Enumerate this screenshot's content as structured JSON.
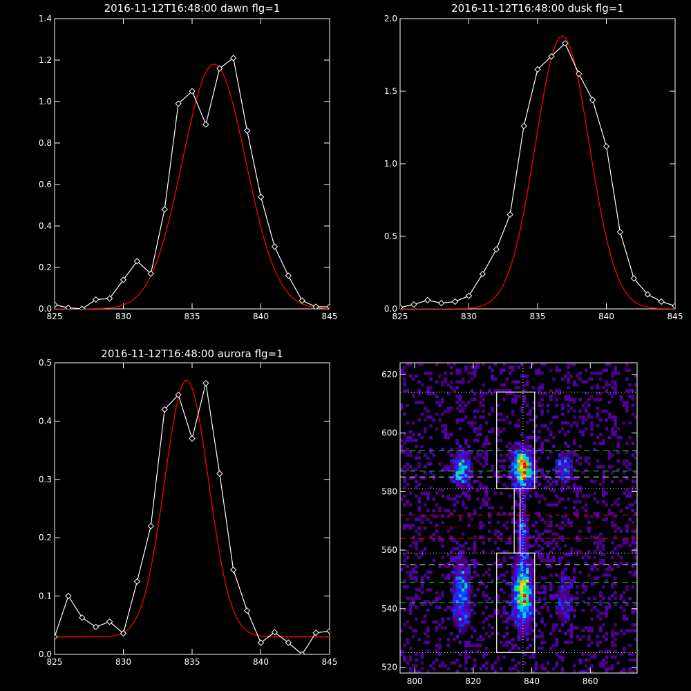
{
  "chart_data": [
    {
      "id": "dawn",
      "type": "line",
      "title": "2016-11-12T16:48:00 dawn flg=1",
      "xlim": [
        825,
        845
      ],
      "ylim": [
        0,
        1.4
      ],
      "xticks": [
        "825",
        "830",
        "835",
        "840",
        "845"
      ],
      "xtick_values": [
        825,
        830,
        835,
        840,
        845
      ],
      "yticks": [
        "0.0",
        "0.2",
        "0.4",
        "0.6",
        "0.8",
        "1.0",
        "1.2",
        "1.4"
      ],
      "ytick_values": [
        0,
        0.2,
        0.4,
        0.6,
        0.8,
        1.0,
        1.2,
        1.4
      ],
      "series": [
        {
          "role": "data",
          "color": "#ffffff",
          "marker": "diamond",
          "x": [
            825,
            826,
            827,
            828,
            829,
            830,
            831,
            832,
            833,
            834,
            835,
            836,
            837,
            838,
            839,
            840,
            841,
            842,
            843,
            844,
            845
          ],
          "y": [
            0.02,
            0.005,
            -0.02,
            0.045,
            0.05,
            0.14,
            0.23,
            0.17,
            0.48,
            0.99,
            1.05,
            0.89,
            1.16,
            1.21,
            0.86,
            0.54,
            0.3,
            0.16,
            0.04,
            0.01,
            0.01
          ]
        },
        {
          "role": "fit",
          "color": "#ff0000",
          "gauss": {
            "amp": 1.18,
            "center": 836.6,
            "sigma": 2.3,
            "offset": 0.0
          }
        }
      ]
    },
    {
      "id": "dusk",
      "type": "line",
      "title": "2016-11-12T16:48:00 dusk flg=1",
      "xlim": [
        825,
        845
      ],
      "ylim": [
        0,
        2.0
      ],
      "xticks": [
        "825",
        "830",
        "835",
        "840",
        "845"
      ],
      "xtick_values": [
        825,
        830,
        835,
        840,
        845
      ],
      "yticks": [
        "0.0",
        "0.5",
        "1.0",
        "1.5",
        "2.0"
      ],
      "ytick_values": [
        0,
        0.5,
        1.0,
        1.5,
        2.0
      ],
      "series": [
        {
          "role": "data",
          "color": "#ffffff",
          "marker": "diamond",
          "x": [
            825,
            826,
            827,
            828,
            829,
            830,
            831,
            832,
            833,
            834,
            835,
            836,
            837,
            838,
            839,
            840,
            841,
            842,
            843,
            844,
            845
          ],
          "y": [
            0.01,
            0.03,
            0.06,
            0.04,
            0.05,
            0.09,
            0.24,
            0.41,
            0.65,
            1.26,
            1.65,
            1.74,
            1.83,
            1.62,
            1.44,
            1.12,
            0.53,
            0.21,
            0.1,
            0.05,
            0.02
          ]
        },
        {
          "role": "fit",
          "color": "#ff0000",
          "gauss": {
            "amp": 1.88,
            "center": 836.8,
            "sigma": 1.95,
            "offset": 0.0
          }
        }
      ]
    },
    {
      "id": "aurora",
      "type": "line",
      "title": "2016-11-12T16:48:00 aurora flg=1",
      "xlim": [
        825,
        845
      ],
      "ylim": [
        0,
        0.5
      ],
      "xticks": [
        "825",
        "830",
        "835",
        "840",
        "845"
      ],
      "xtick_values": [
        825,
        830,
        835,
        840,
        845
      ],
      "yticks": [
        "0.0",
        "0.1",
        "0.2",
        "0.3",
        "0.4",
        "0.5"
      ],
      "ytick_values": [
        0,
        0.1,
        0.2,
        0.3,
        0.4,
        0.5
      ],
      "series": [
        {
          "role": "data",
          "color": "#ffffff",
          "marker": "diamond",
          "x": [
            825,
            826,
            827,
            828,
            829,
            830,
            831,
            832,
            833,
            834,
            835,
            836,
            837,
            838,
            839,
            840,
            841,
            842,
            843,
            844,
            845
          ],
          "y": [
            0.03,
            0.1,
            0.063,
            0.047,
            0.056,
            0.036,
            0.125,
            0.22,
            0.42,
            0.445,
            0.37,
            0.465,
            0.31,
            0.145,
            0.075,
            0.02,
            0.038,
            0.02,
            -0.005,
            0.037,
            0.04
          ]
        },
        {
          "role": "fit",
          "color": "#ff0000",
          "gauss": {
            "amp": 0.44,
            "center": 834.6,
            "sigma": 1.6,
            "offset": 0.03
          }
        }
      ]
    },
    {
      "id": "image",
      "type": "heatmap",
      "title": "",
      "xlim": [
        795,
        876
      ],
      "ylim": [
        518,
        624
      ],
      "xticks": [
        "800",
        "820",
        "840",
        "860"
      ],
      "xtick_values": [
        800,
        820,
        840,
        860
      ],
      "yticks": [
        "520",
        "540",
        "560",
        "580",
        "600",
        "620"
      ],
      "ytick_values": [
        520,
        540,
        560,
        580,
        600,
        620
      ],
      "blobs": [
        {
          "x": 837,
          "y": 588,
          "sx": 2.2,
          "sy": 4.5,
          "amp": 1.0
        },
        {
          "x": 837,
          "y": 545,
          "sx": 2.2,
          "sy": 8.0,
          "amp": 0.8
        },
        {
          "x": 837,
          "y": 567,
          "sx": 1.2,
          "sy": 6.0,
          "amp": 0.35
        },
        {
          "x": 816,
          "y": 588,
          "sx": 2.0,
          "sy": 4.0,
          "amp": 0.55
        },
        {
          "x": 816,
          "y": 545,
          "sx": 2.0,
          "sy": 8.0,
          "amp": 0.5
        },
        {
          "x": 851,
          "y": 588,
          "sx": 2.0,
          "sy": 3.5,
          "amp": 0.35
        },
        {
          "x": 851,
          "y": 543,
          "sx": 2.0,
          "sy": 6.0,
          "amp": 0.25
        }
      ],
      "boxes": [
        {
          "x0": 828,
          "x1": 841,
          "y0": 581,
          "y1": 614
        },
        {
          "x0": 828,
          "x1": 841,
          "y0": 525,
          "y1": 559
        },
        {
          "x0": 834,
          "x1": 836,
          "y0": 559,
          "y1": 581
        }
      ],
      "vline": {
        "x": 837,
        "color": "#ffffff",
        "style": "dotted"
      },
      "hlines": [
        {
          "y": 614,
          "color": "#ffffff",
          "style": "dotted"
        },
        {
          "y": 581,
          "color": "#ffffff",
          "style": "dotted"
        },
        {
          "y": 559,
          "color": "#ffffff",
          "style": "dotted"
        },
        {
          "y": 525,
          "color": "#ffffff",
          "style": "dotted"
        },
        {
          "y": 594,
          "color": "#00ff00",
          "style": "dashed"
        },
        {
          "y": 587,
          "color": "#00ff00",
          "style": "dashed"
        },
        {
          "y": 585,
          "color": "#ffffff",
          "style": "dashed"
        },
        {
          "y": 572,
          "color": "#ff0000",
          "style": "dashed"
        },
        {
          "y": 568,
          "color": "#ff0000",
          "style": "dotted"
        },
        {
          "y": 564,
          "color": "#ff0000",
          "style": "dashed"
        },
        {
          "y": 555,
          "color": "#ffffff",
          "style": "dashed"
        },
        {
          "y": 549,
          "color": "#00ff00",
          "style": "dashed"
        },
        {
          "y": 542,
          "color": "#00ff00",
          "style": "dashed"
        }
      ]
    }
  ]
}
